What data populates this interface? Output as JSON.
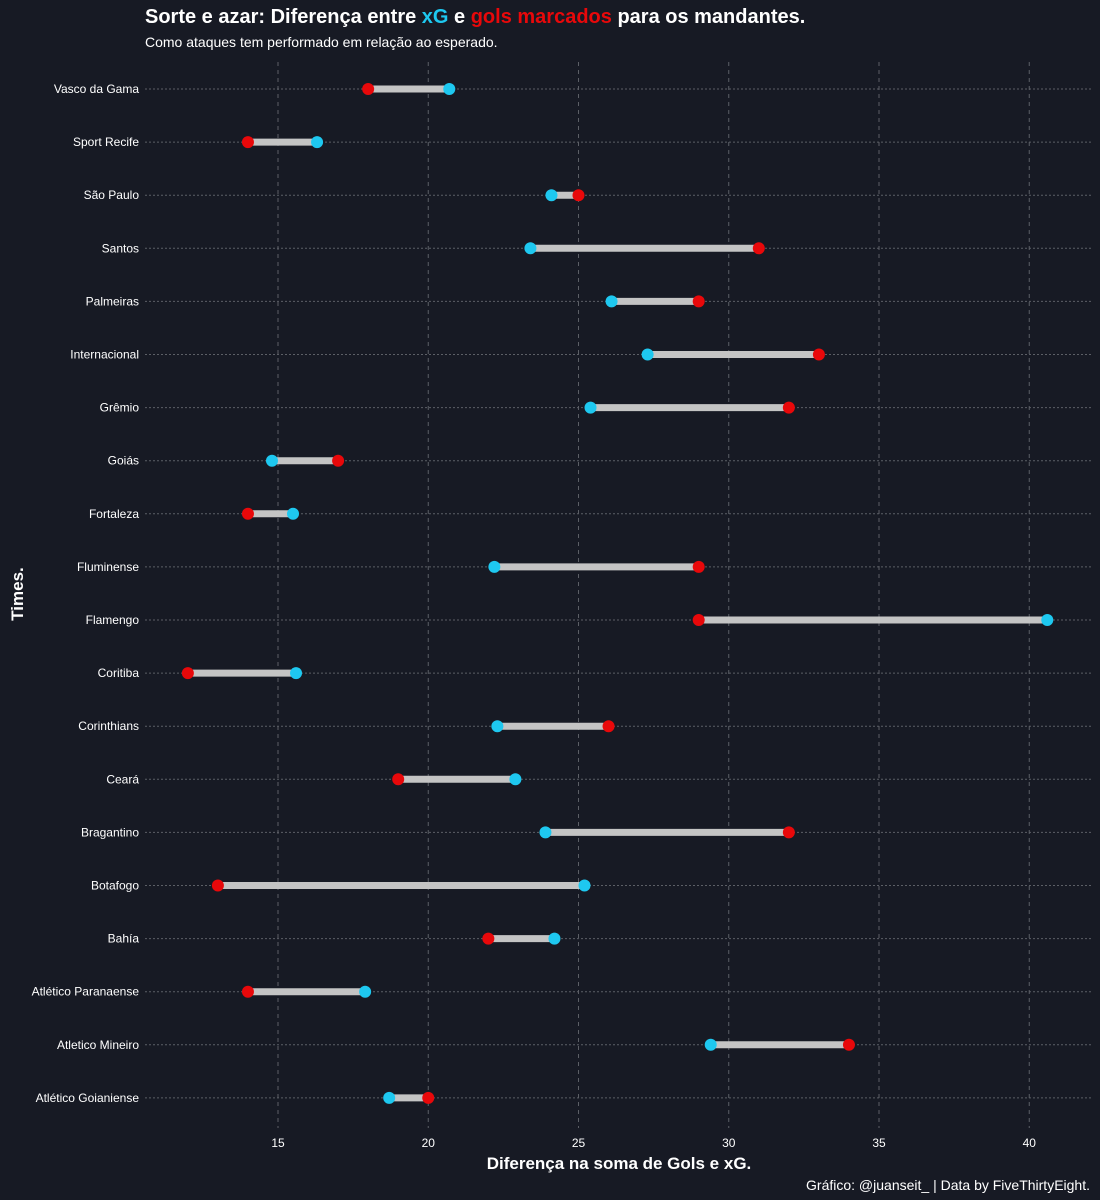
{
  "title": {
    "part1": "Sorte e azar: Diferença entre ",
    "part2": "xG",
    "part3": " e ",
    "part4": "gols marcados",
    "part5": " para os mandantes."
  },
  "subtitle": "Como ataques tem performado em relação ao esperado.",
  "caption": "Gráfico: @juanseit_ | Data by FiveThirtyEight.",
  "colors": {
    "background": "#171a24",
    "xg": "#1ec8f0",
    "goals": "#e8080a",
    "segment": "#c4c4c4",
    "grid": "#5c5f66"
  },
  "chart_data": {
    "type": "dumbbell",
    "title": "Sorte e azar: Diferença entre xG e gols marcados para os mandantes.",
    "xlabel": "Diferença na soma de Gols e xG.",
    "ylabel": "Times.",
    "xlim": [
      10.5,
      42
    ],
    "xticks": [
      15,
      20,
      25,
      30,
      35,
      40
    ],
    "grid": true,
    "categories": [
      "Vasco da Gama",
      "Sport Recife",
      "São Paulo",
      "Santos",
      "Palmeiras",
      "Internacional",
      "Grêmio",
      "Goiás",
      "Fortaleza",
      "Fluminense",
      "Flamengo",
      "Coritiba",
      "Corinthians",
      "Ceará",
      "Bragantino",
      "Botafogo",
      "Bahía",
      "Atlético Paranaense",
      "Atletico Mineiro",
      "Atlético Goianiense"
    ],
    "series": [
      {
        "name": "xG",
        "color": "#1ec8f0",
        "values": [
          20.7,
          16.3,
          24.1,
          23.4,
          26.1,
          27.3,
          25.4,
          14.8,
          15.5,
          22.2,
          40.6,
          15.6,
          22.3,
          22.9,
          23.9,
          25.2,
          24.2,
          17.9,
          29.4,
          18.7
        ]
      },
      {
        "name": "gols marcados",
        "color": "#e8080a",
        "values": [
          18,
          14,
          25,
          31,
          29,
          33,
          32,
          17,
          14,
          29,
          29,
          12,
          26,
          19,
          32,
          13,
          22,
          14,
          34,
          20
        ]
      }
    ]
  }
}
